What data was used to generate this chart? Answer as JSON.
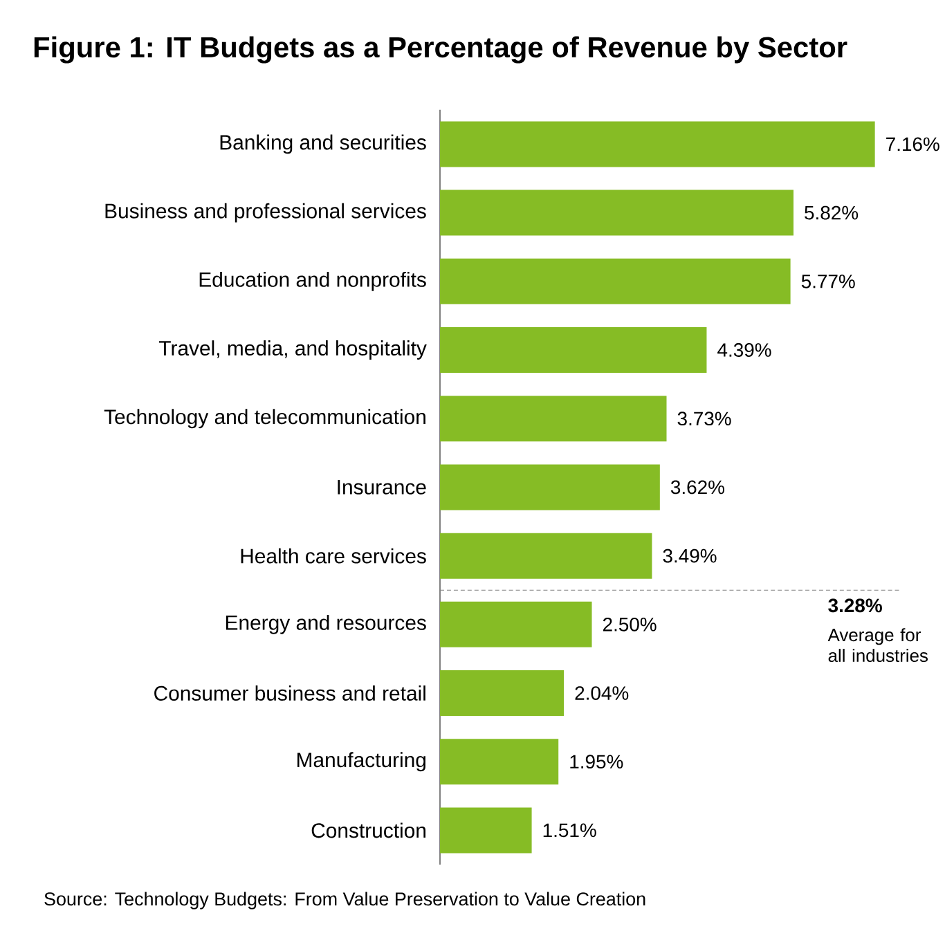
{
  "chart_data": {
    "type": "bar",
    "orientation": "horizontal",
    "title": "Figure 1: IT Budgets as a Percentage of Revenue by Sector",
    "categories": [
      "Banking and securities",
      "Business and professional services",
      "Education and nonprofits",
      "Travel, media, and hospitality",
      "Technology and telecommunication",
      "Insurance",
      "Health care services",
      "Energy and resources",
      "Consumer business and retail",
      "Manufacturing",
      "Construction"
    ],
    "values": [
      7.16,
      5.82,
      5.77,
      4.39,
      3.73,
      3.62,
      3.49,
      2.5,
      2.04,
      1.95,
      1.51
    ],
    "value_labels": [
      "7.16%",
      "5.82%",
      "5.77%",
      "4.39%",
      "3.73%",
      "3.62%",
      "3.49%",
      "2.50%",
      "2.04%",
      "1.95%",
      "1.51%"
    ],
    "color": "#86bc25",
    "xlim": [
      0,
      7.6
    ],
    "tick_labels": "y",
    "annotations": [
      "3.28%",
      "Average for all industries",
      "Source: Technology Budgets: From Value Preservation to Value Creation"
    ]
  }
}
